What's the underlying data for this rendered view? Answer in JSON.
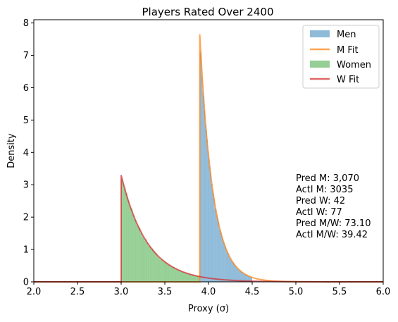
{
  "chart_data": {
    "type": "bar",
    "title": "Players Rated Over 2400",
    "xlabel": "Proxy (σ)",
    "ylabel": "Density",
    "xlim": [
      2.0,
      6.0
    ],
    "ylim": [
      0,
      8.1
    ],
    "xticks": [
      "2.0",
      "2.5",
      "3.0",
      "3.5",
      "4.0",
      "4.5",
      "5.0",
      "5.5",
      "6.0"
    ],
    "yticks": [
      "0",
      "1",
      "2",
      "3",
      "4",
      "5",
      "6",
      "7",
      "8"
    ],
    "grid": false,
    "legend_position": "top-right",
    "series": [
      {
        "name": "Men",
        "kind": "histogram",
        "color": "#1f77b4",
        "alpha": 0.5,
        "start": 3.9,
        "peak": 7.62,
        "decay": 6.7,
        "end": 4.5
      },
      {
        "name": "M Fit",
        "kind": "line",
        "color": "#ff7f0e",
        "start": 3.9,
        "peak": 7.65,
        "decay": 6.7
      },
      {
        "name": "Women",
        "kind": "histogram",
        "color": "#2ca02c",
        "alpha": 0.5,
        "start": 3.0,
        "peak": 3.3,
        "decay": 3.35,
        "end": 3.9
      },
      {
        "name": "W Fit",
        "kind": "line",
        "color": "#d62728",
        "start": 3.0,
        "peak": 3.3,
        "decay": 3.35
      }
    ],
    "annotations": [
      "Pred M: 3,070",
      "Actl M: 3035",
      "Pred W: 42",
      "Actl W: 77",
      "Pred M/W: 73.10",
      "Actl M/W: 39.42"
    ]
  }
}
